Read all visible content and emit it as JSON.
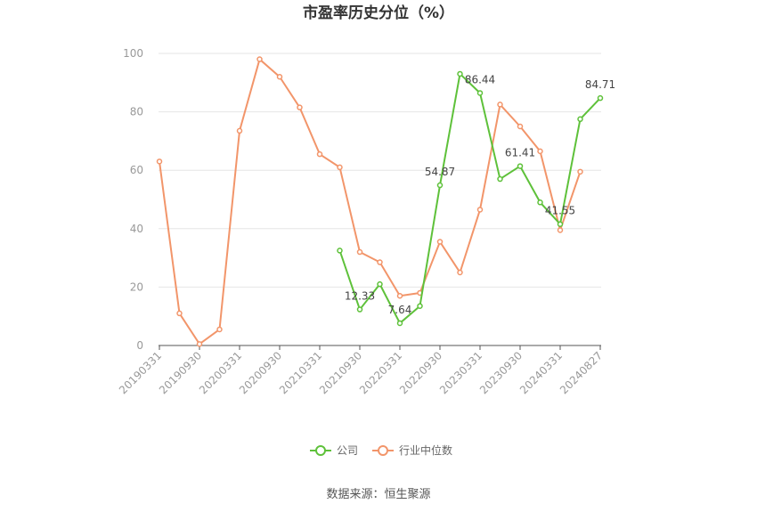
{
  "title": "市盈率历史分位（%）",
  "source": "数据来源：恒生聚源",
  "chart_data": {
    "type": "line",
    "title": "市盈率历史分位（%）",
    "ylim": [
      0,
      100
    ],
    "y_ticks": [
      0,
      20,
      40,
      60,
      80,
      100
    ],
    "x_tick_labels": [
      "20190331",
      "20190930",
      "20200331",
      "20200930",
      "20210331",
      "20210930",
      "20220331",
      "20220930",
      "20230331",
      "20230930",
      "20240331",
      "20240827"
    ],
    "grid": true,
    "legend_position": "bottom",
    "series": [
      {
        "name": "公司",
        "color": "#5ec13a",
        "values": [
          null,
          null,
          null,
          null,
          null,
          null,
          null,
          null,
          null,
          32.5,
          12.33,
          21.0,
          7.64,
          13.5,
          54.87,
          93.0,
          86.44,
          57.0,
          61.41,
          49.0,
          41.55,
          77.5,
          84.71
        ],
        "labels": [
          {
            "index": 10,
            "text": "12.33"
          },
          {
            "index": 12,
            "text": "7.64"
          },
          {
            "index": 14,
            "text": "54.87"
          },
          {
            "index": 16,
            "text": "86.44"
          },
          {
            "index": 18,
            "text": "61.41"
          },
          {
            "index": 20,
            "text": "41.55"
          },
          {
            "index": 22,
            "text": "84.71"
          }
        ]
      },
      {
        "name": "行业中位数",
        "color": "#f2956a",
        "values": [
          63.0,
          11.0,
          0.5,
          5.5,
          73.5,
          98.0,
          92.0,
          81.5,
          65.5,
          61.0,
          32.0,
          28.5,
          17.0,
          18.0,
          35.5,
          25.0,
          46.5,
          82.5,
          75.0,
          66.5,
          39.5,
          59.5,
          null
        ],
        "labels": []
      }
    ]
  }
}
